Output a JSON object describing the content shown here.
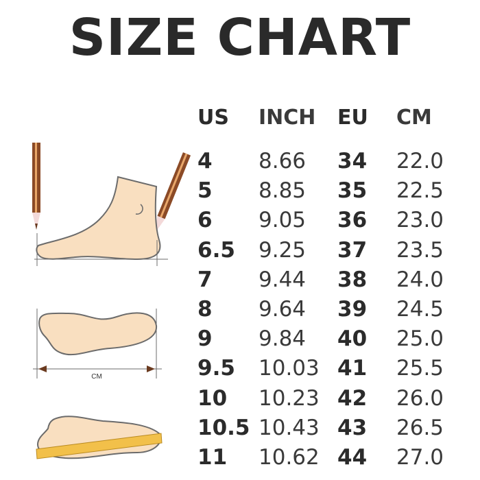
{
  "title": "SIZE CHART",
  "headers": [
    "US",
    "INCH",
    "EU",
    "CM"
  ],
  "rows": [
    [
      "4",
      "8.66",
      "34",
      "22.0"
    ],
    [
      "5",
      "8.85",
      "35",
      "22.5"
    ],
    [
      "6",
      "9.05",
      "36",
      "23.0"
    ],
    [
      "6.5",
      "9.25",
      "37",
      "23.5"
    ],
    [
      "7",
      "9.44",
      "38",
      "24.0"
    ],
    [
      "8",
      "9.64",
      "39",
      "24.5"
    ],
    [
      "9",
      "9.84",
      "40",
      "25.0"
    ],
    [
      "9.5",
      "10.03",
      "41",
      "25.5"
    ],
    [
      "10",
      "10.23",
      "42",
      "26.0"
    ],
    [
      "10.5",
      "10.43",
      "43",
      "26.5"
    ],
    [
      "11",
      "10.62",
      "44",
      "27.0"
    ]
  ],
  "illustration": {
    "measure_label": "CM"
  },
  "colors": {
    "text": "#2a2a2a",
    "foot": "#f9dfc0",
    "outline": "#6b6b6b",
    "pencil": "#8b4a26",
    "ruler": "#f2c04a"
  }
}
